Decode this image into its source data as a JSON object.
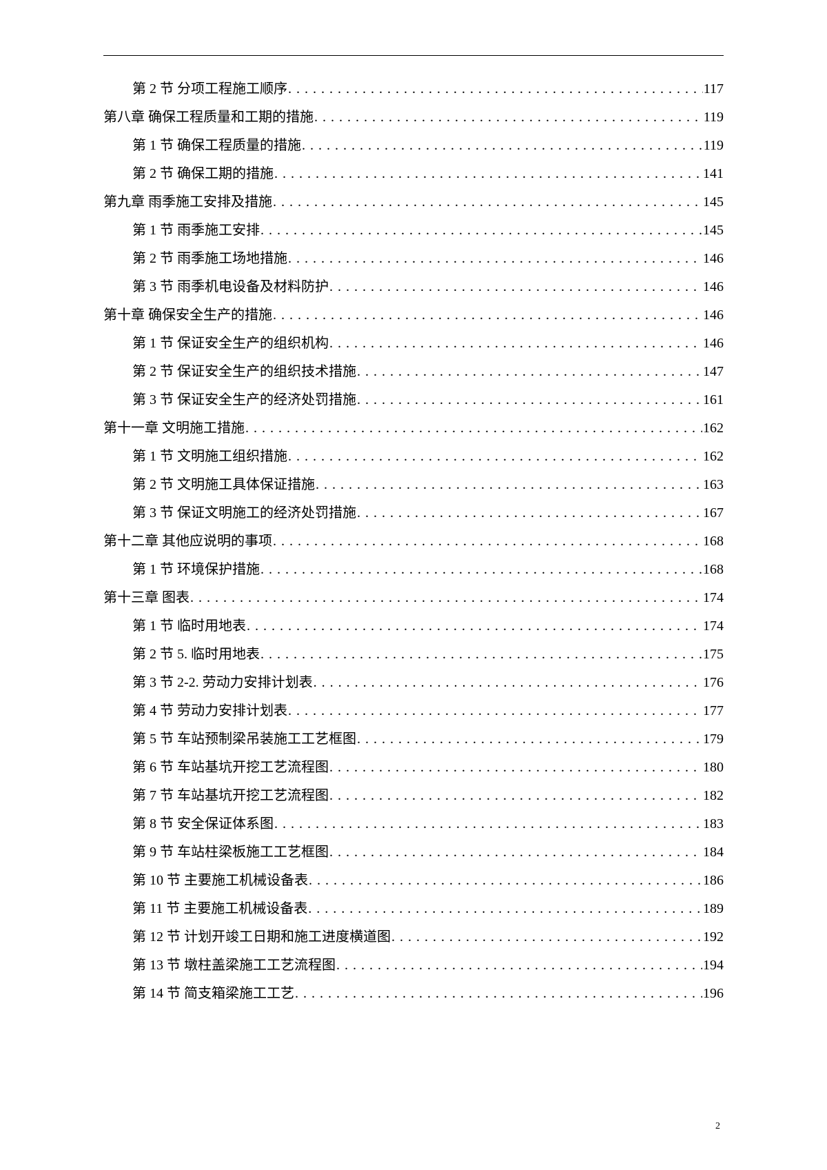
{
  "pageNumber": "2",
  "toc": [
    {
      "level": "section",
      "label": "第 2 节 分项工程施工顺序",
      "page": "117"
    },
    {
      "level": "chapter",
      "label": "第八章 确保工程质量和工期的措施",
      "page": "119"
    },
    {
      "level": "section",
      "label": "第 1 节 确保工程质量的措施",
      "page": "119"
    },
    {
      "level": "section",
      "label": "第 2 节 确保工期的措施",
      "page": "141"
    },
    {
      "level": "chapter",
      "label": "第九章 雨季施工安排及措施",
      "page": "145"
    },
    {
      "level": "section",
      "label": "第 1 节 雨季施工安排",
      "page": "145"
    },
    {
      "level": "section",
      "label": "第 2 节 雨季施工场地措施",
      "page": "146"
    },
    {
      "level": "section",
      "label": "第 3 节 雨季机电设备及材料防护",
      "page": "146"
    },
    {
      "level": "chapter",
      "label": "第十章 确保安全生产的措施",
      "page": "146"
    },
    {
      "level": "section",
      "label": "第 1 节 保证安全生产的组织机构",
      "page": "146"
    },
    {
      "level": "section",
      "label": "第 2 节 保证安全生产的组织技术措施",
      "page": "147"
    },
    {
      "level": "section",
      "label": "第 3 节 保证安全生产的经济处罚措施",
      "page": "161"
    },
    {
      "level": "chapter",
      "label": "第十一章 文明施工措施",
      "page": "162"
    },
    {
      "level": "section",
      "label": "第 1 节 文明施工组织措施",
      "page": "162"
    },
    {
      "level": "section",
      "label": "第 2 节 文明施工具体保证措施",
      "page": "163"
    },
    {
      "level": "section",
      "label": "第 3 节 保证文明施工的经济处罚措施",
      "page": "167"
    },
    {
      "level": "chapter",
      "label": "第十二章 其他应说明的事项",
      "page": "168"
    },
    {
      "level": "section",
      "label": "第 1 节 环境保护措施",
      "page": "168"
    },
    {
      "level": "chapter",
      "label": "第十三章 图表",
      "page": "174"
    },
    {
      "level": "section",
      "label": "第 1 节 临时用地表",
      "page": "174"
    },
    {
      "level": "section",
      "label": "第 2 节 5. 临时用地表",
      "page": "175"
    },
    {
      "level": "section",
      "label": "第 3 节 2-2. 劳动力安排计划表",
      "page": "176"
    },
    {
      "level": "section",
      "label": "第 4 节 劳动力安排计划表",
      "page": "177"
    },
    {
      "level": "section",
      "label": "第 5 节 车站预制梁吊装施工工艺框图",
      "page": "179"
    },
    {
      "level": "section",
      "label": "第 6 节 车站基坑开挖工艺流程图",
      "page": "180"
    },
    {
      "level": "section",
      "label": "第 7 节 车站基坑开挖工艺流程图",
      "page": "182"
    },
    {
      "level": "section",
      "label": "第 8 节 安全保证体系图",
      "page": "183"
    },
    {
      "level": "section",
      "label": "第 9 节 车站柱梁板施工工艺框图",
      "page": "184"
    },
    {
      "level": "section",
      "label": "第 10 节 主要施工机械设备表",
      "page": "186"
    },
    {
      "level": "section",
      "label": "第 11 节 主要施工机械设备表",
      "page": "189"
    },
    {
      "level": "section",
      "label": "第 12 节 计划开竣工日期和施工进度横道图",
      "page": "192"
    },
    {
      "level": "section",
      "label": "第 13 节 墩柱盖梁施工工艺流程图",
      "page": "194"
    },
    {
      "level": "section",
      "label": "第 14 节 简支箱梁施工工艺",
      "page": "196"
    }
  ]
}
